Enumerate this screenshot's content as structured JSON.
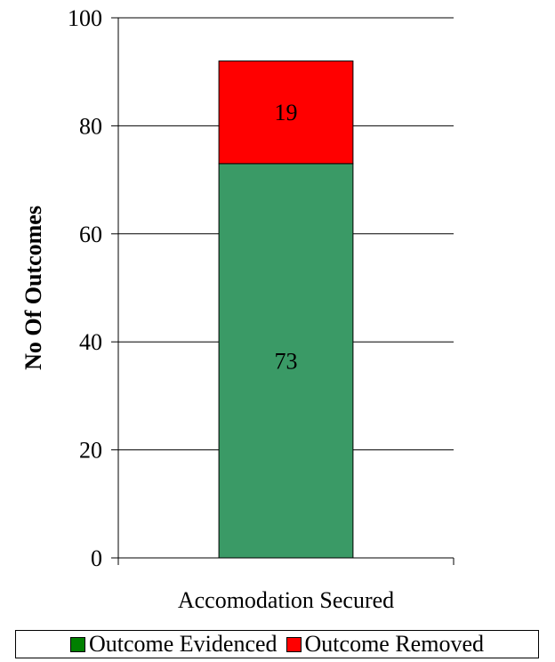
{
  "chart_data": {
    "type": "bar",
    "stacked": true,
    "categories": [
      "Accomodation Secured"
    ],
    "series": [
      {
        "name": "Outcome Evidenced",
        "values": [
          73
        ],
        "color": "#3a9a66"
      },
      {
        "name": "Outcome Removed",
        "values": [
          19
        ],
        "color": "#ff0000"
      }
    ],
    "title": "",
    "xlabel": "",
    "ylabel": "No Of Outcomes",
    "ylim": [
      0,
      100
    ],
    "yticks": [
      0,
      20,
      40,
      60,
      80,
      100
    ],
    "grid": true,
    "legend_position": "bottom"
  },
  "legend": {
    "items": [
      {
        "label": "Outcome Evidenced",
        "color": "#008000"
      },
      {
        "label": "Outcome Removed",
        "color": "#ff0000"
      }
    ]
  }
}
